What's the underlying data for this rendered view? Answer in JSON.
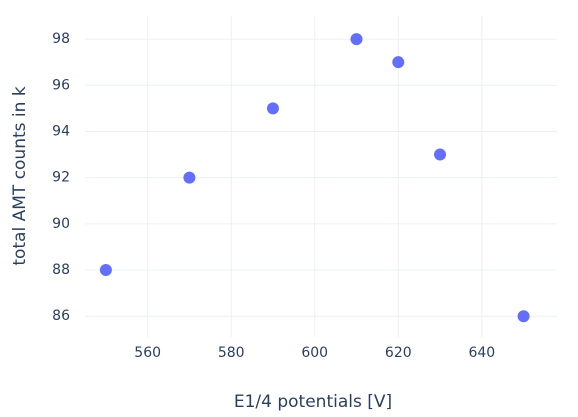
{
  "chart_data": {
    "type": "scatter",
    "x_label": "E1/4 potentials [V]",
    "y_label": "total AMT counts in k",
    "series": [
      {
        "color": "#636efa",
        "x": [
          550,
          570,
          590,
          610,
          620,
          630,
          650
        ],
        "values": [
          88,
          92,
          95,
          98,
          97,
          93,
          86
        ]
      }
    ],
    "xlim": [
      545,
      658
    ],
    "ylim": [
      85.1,
      99
    ],
    "xticks": [
      560,
      580,
      600,
      620,
      640
    ],
    "yticks": [
      86,
      88,
      90,
      92,
      94,
      96,
      98
    ],
    "grid": true
  }
}
